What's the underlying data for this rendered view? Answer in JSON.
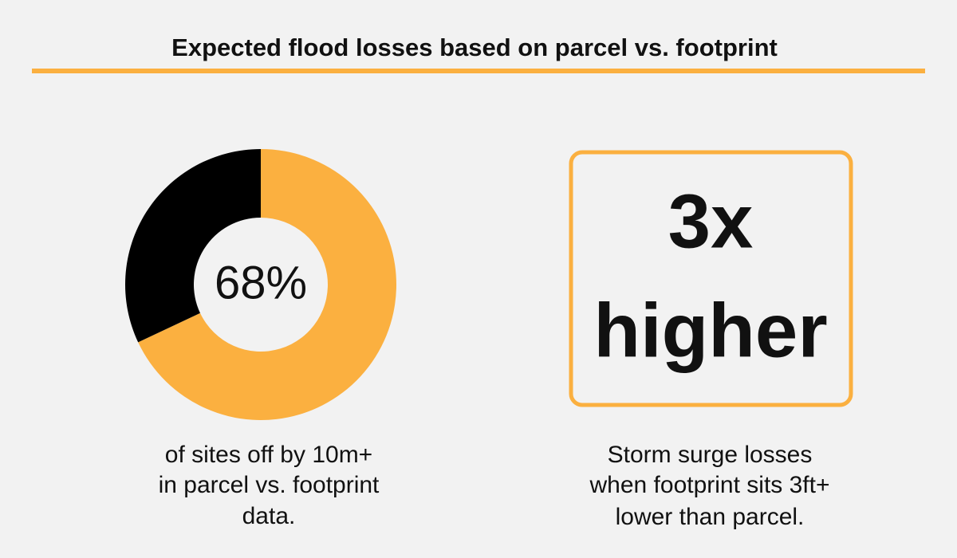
{
  "title": "Expected flood losses based on parcel vs. footprint",
  "chart_data": {
    "type": "donut",
    "values": [
      68,
      32
    ],
    "value_labels": [
      "68%",
      null
    ],
    "colors": [
      "#fbb040",
      "#000000"
    ],
    "caption": [
      "of sites off by 10m+",
      "in parcel vs. footprint",
      "data."
    ]
  },
  "callout": {
    "lines": [
      "3x",
      "higher"
    ],
    "caption": [
      "Storm surge losses",
      "when footprint sits 3ft+",
      "lower than parcel."
    ]
  }
}
